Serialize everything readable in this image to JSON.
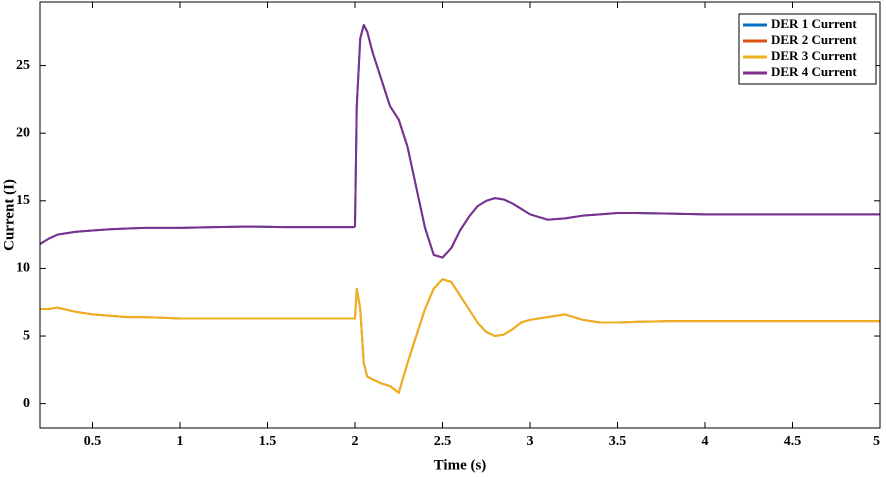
{
  "chart_data": {
    "type": "line",
    "xlabel": "Time (s)",
    "ylabel": "Current (I)",
    "x": [
      0.2,
      0.25,
      0.3,
      0.4,
      0.5,
      0.6,
      0.7,
      0.8,
      0.9,
      1.0,
      1.2,
      1.4,
      1.6,
      1.8,
      1.99,
      2.0,
      2.01,
      2.03,
      2.05,
      2.07,
      2.1,
      2.15,
      2.2,
      2.25,
      2.3,
      2.35,
      2.4,
      2.45,
      2.5,
      2.55,
      2.6,
      2.65,
      2.7,
      2.75,
      2.8,
      2.85,
      2.9,
      2.95,
      3.0,
      3.1,
      3.2,
      3.3,
      3.4,
      3.5,
      3.6,
      3.8,
      4.0,
      4.5,
      5.0
    ],
    "series": [
      {
        "name": "DER 1 Current",
        "color": "#0072BD",
        "values": [
          11.8,
          12.2,
          12.5,
          12.7,
          12.8,
          12.9,
          12.95,
          13.0,
          13.0,
          13.0,
          13.05,
          13.1,
          13.05,
          13.05,
          13.05,
          13.1,
          22,
          27,
          28,
          27.5,
          26,
          24,
          22,
          21,
          19,
          16,
          13,
          11,
          10.8,
          11.5,
          12.8,
          13.8,
          14.6,
          15,
          15.2,
          15.1,
          14.8,
          14.4,
          14.0,
          13.6,
          13.7,
          13.9,
          14.0,
          14.1,
          14.1,
          14.05,
          14.0,
          14.0,
          14.0
        ]
      },
      {
        "name": "DER 2 Current",
        "color": "#D95319",
        "values": [
          7.0,
          7.0,
          7.1,
          6.8,
          6.6,
          6.5,
          6.4,
          6.4,
          6.35,
          6.3,
          6.3,
          6.3,
          6.3,
          6.3,
          6.3,
          6.3,
          8.5,
          7,
          3,
          2,
          1.8,
          1.5,
          1.3,
          0.8,
          3,
          5,
          7,
          8.5,
          9.2,
          9.0,
          8.0,
          7.0,
          6.0,
          5.3,
          5.0,
          5.1,
          5.5,
          6.0,
          6.2,
          6.4,
          6.6,
          6.2,
          6.0,
          6.0,
          6.05,
          6.1,
          6.1,
          6.1,
          6.1
        ]
      },
      {
        "name": "DER 3 Current",
        "color": "#EDB120",
        "values": [
          7.0,
          7.0,
          7.1,
          6.8,
          6.6,
          6.5,
          6.4,
          6.4,
          6.35,
          6.3,
          6.3,
          6.3,
          6.3,
          6.3,
          6.3,
          6.3,
          8.5,
          7,
          3,
          2,
          1.8,
          1.5,
          1.3,
          0.8,
          3,
          5,
          7,
          8.5,
          9.2,
          9.0,
          8.0,
          7.0,
          6.0,
          5.3,
          5.0,
          5.1,
          5.5,
          6.0,
          6.2,
          6.4,
          6.6,
          6.2,
          6.0,
          6.0,
          6.05,
          6.1,
          6.1,
          6.1,
          6.1
        ]
      },
      {
        "name": "DER 4 Current",
        "color": "#7E2F8E",
        "values": [
          11.8,
          12.2,
          12.5,
          12.7,
          12.8,
          12.9,
          12.95,
          13.0,
          13.0,
          13.0,
          13.05,
          13.1,
          13.05,
          13.05,
          13.05,
          13.1,
          22,
          27,
          28,
          27.5,
          26,
          24,
          22,
          21,
          19,
          16,
          13,
          11,
          10.8,
          11.5,
          12.8,
          13.8,
          14.6,
          15,
          15.2,
          15.1,
          14.8,
          14.4,
          14.0,
          13.6,
          13.7,
          13.9,
          14.0,
          14.1,
          14.1,
          14.05,
          14.0,
          14.0,
          14.0
        ]
      }
    ],
    "xlim": [
      0.2,
      5
    ],
    "xticks": [
      0.5,
      1,
      1.5,
      2,
      2.5,
      3,
      3.5,
      4,
      4.5,
      5
    ],
    "ylim": [
      -1.8,
      29.7
    ],
    "yticks": [
      0,
      5,
      10,
      15,
      20,
      25
    ],
    "legend": "upper-right"
  }
}
